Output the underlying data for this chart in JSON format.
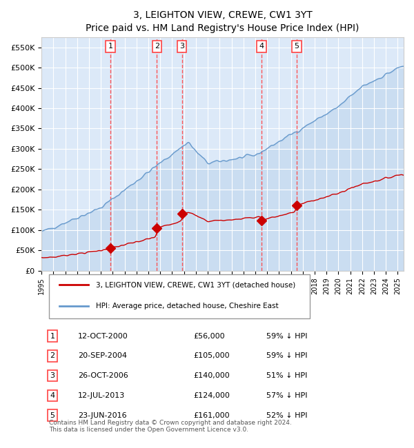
{
  "title": "3, LEIGHTON VIEW, CREWE, CW1 3YT",
  "subtitle": "Price paid vs. HM Land Registry's House Price Index (HPI)",
  "footer_line1": "Contains HM Land Registry data © Crown copyright and database right 2024.",
  "footer_line2": "This data is licensed under the Open Government Licence v3.0.",
  "legend_red": "3, LEIGHTON VIEW, CREWE, CW1 3YT (detached house)",
  "legend_blue": "HPI: Average price, detached house, Cheshire East",
  "purchases": [
    {
      "label": "1",
      "date_str": "12-OCT-2000",
      "year": 2000.79,
      "price": 56000,
      "hpi_pct": "59% ↓ HPI"
    },
    {
      "label": "2",
      "date_str": "20-SEP-2004",
      "year": 2004.72,
      "price": 105000,
      "hpi_pct": "59% ↓ HPI"
    },
    {
      "label": "3",
      "date_str": "26-OCT-2006",
      "year": 2006.82,
      "price": 140000,
      "hpi_pct": "51% ↓ HPI"
    },
    {
      "label": "4",
      "date_str": "12-JUL-2013",
      "year": 2013.53,
      "price": 124000,
      "hpi_pct": "57% ↓ HPI"
    },
    {
      "label": "5",
      "date_str": "23-JUN-2016",
      "year": 2016.48,
      "price": 161000,
      "hpi_pct": "52% ↓ HPI"
    }
  ],
  "ylim": [
    0,
    575000
  ],
  "xlim": [
    1995.0,
    2025.5
  ],
  "background_color": "#dce9f8",
  "plot_bg": "#dce9f8",
  "red_color": "#cc0000",
  "blue_color": "#6699cc",
  "grid_color": "#ffffff",
  "dashed_color": "#ff4444"
}
